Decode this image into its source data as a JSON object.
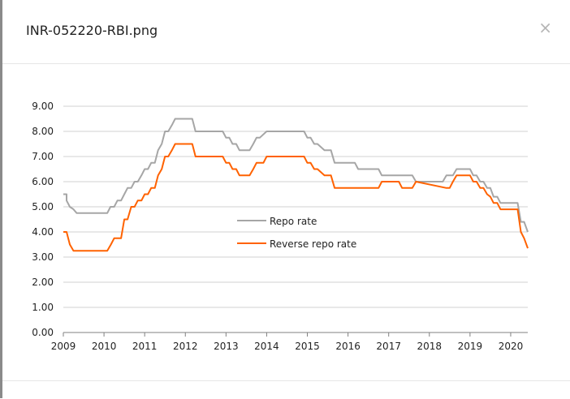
{
  "dialog": {
    "title": "INR-052220-RBI.png",
    "close_label": "×"
  },
  "colors": {
    "repo": "#a6a6a6",
    "reverse_repo": "#ff6200",
    "grid": "#d0d0d0",
    "axis": "#808080",
    "text": "#222222"
  },
  "chart_data": {
    "type": "line",
    "title": "",
    "xlabel": "",
    "ylabel": "",
    "ylim": [
      0,
      9
    ],
    "yticks": [
      "0.00",
      "1.00",
      "2.00",
      "3.00",
      "4.00",
      "5.00",
      "6.00",
      "7.00",
      "8.00",
      "9.00"
    ],
    "xlim": [
      2009,
      2020.42
    ],
    "xticks": [
      "2009",
      "2010",
      "2011",
      "2012",
      "2013",
      "2014",
      "2015",
      "2016",
      "2017",
      "2018",
      "2019",
      "2020"
    ],
    "grid": "horizontal",
    "legend": "center",
    "series": [
      {
        "name": "Repo rate",
        "color_key": "repo",
        "x": [
          2009.0,
          2009.08,
          2009.08,
          2009.16,
          2009.25,
          2009.33,
          2009.33,
          2010.08,
          2010.16,
          2010.25,
          2010.33,
          2010.42,
          2010.5,
          2010.58,
          2010.67,
          2010.75,
          2010.83,
          2010.92,
          2011.0,
          2011.08,
          2011.16,
          2011.25,
          2011.33,
          2011.42,
          2011.5,
          2011.58,
          2011.67,
          2011.75,
          2011.83,
          2012.17,
          2012.25,
          2012.33,
          2012.42,
          2012.92,
          2013.0,
          2013.08,
          2013.16,
          2013.25,
          2013.33,
          2013.42,
          2013.58,
          2013.67,
          2013.75,
          2013.83,
          2014.0,
          2014.08,
          2014.92,
          2015.0,
          2015.08,
          2015.17,
          2015.25,
          2015.42,
          2015.58,
          2015.67,
          2015.75,
          2016.17,
          2016.25,
          2016.75,
          2016.83,
          2017.58,
          2017.67,
          2018.33,
          2018.42,
          2018.58,
          2018.67,
          2019.0,
          2019.08,
          2019.16,
          2019.25,
          2019.33,
          2019.42,
          2019.5,
          2019.58,
          2019.67,
          2019.75,
          2019.83,
          2020.17,
          2020.25,
          2020.33,
          2020.42
        ],
        "y": [
          5.5,
          5.5,
          5.25,
          5.0,
          4.9,
          4.75,
          4.75,
          4.75,
          5.0,
          5.0,
          5.25,
          5.25,
          5.5,
          5.75,
          5.75,
          6.0,
          6.0,
          6.25,
          6.5,
          6.5,
          6.75,
          6.75,
          7.25,
          7.5,
          8.0,
          8.0,
          8.25,
          8.5,
          8.5,
          8.5,
          8.0,
          8.0,
          8.0,
          8.0,
          7.75,
          7.75,
          7.5,
          7.5,
          7.25,
          7.25,
          7.25,
          7.5,
          7.75,
          7.75,
          8.0,
          8.0,
          8.0,
          7.75,
          7.75,
          7.5,
          7.5,
          7.25,
          7.25,
          6.75,
          6.75,
          6.75,
          6.5,
          6.5,
          6.25,
          6.25,
          6.0,
          6.0,
          6.25,
          6.25,
          6.5,
          6.5,
          6.25,
          6.25,
          6.0,
          6.0,
          5.75,
          5.75,
          5.4,
          5.4,
          5.15,
          5.15,
          5.15,
          4.4,
          4.4,
          4.0
        ]
      },
      {
        "name": "Reverse repo rate",
        "color_key": "reverse_repo",
        "x": [
          2009.0,
          2009.08,
          2009.16,
          2009.25,
          2010.08,
          2010.17,
          2010.25,
          2010.33,
          2010.42,
          2010.5,
          2010.58,
          2010.67,
          2010.75,
          2010.83,
          2010.92,
          2011.0,
          2011.08,
          2011.16,
          2011.25,
          2011.33,
          2011.42,
          2011.5,
          2011.58,
          2011.67,
          2011.75,
          2011.83,
          2012.17,
          2012.25,
          2012.92,
          2013.0,
          2013.08,
          2013.16,
          2013.25,
          2013.33,
          2013.58,
          2013.67,
          2013.75,
          2013.92,
          2014.0,
          2014.92,
          2015.0,
          2015.08,
          2015.17,
          2015.25,
          2015.42,
          2015.58,
          2015.67,
          2016.17,
          2016.25,
          2016.75,
          2016.83,
          2017.25,
          2017.33,
          2017.58,
          2017.67,
          2018.42,
          2018.5,
          2018.58,
          2018.67,
          2019.0,
          2019.08,
          2019.16,
          2019.25,
          2019.33,
          2019.42,
          2019.5,
          2019.58,
          2019.67,
          2019.75,
          2019.83,
          2020.17,
          2020.25,
          2020.33,
          2020.42
        ],
        "y": [
          4.0,
          4.0,
          3.5,
          3.25,
          3.25,
          3.5,
          3.75,
          3.75,
          3.75,
          4.5,
          4.5,
          5.0,
          5.0,
          5.25,
          5.25,
          5.5,
          5.5,
          5.75,
          5.75,
          6.25,
          6.5,
          7.0,
          7.0,
          7.25,
          7.5,
          7.5,
          7.5,
          7.0,
          7.0,
          6.75,
          6.75,
          6.5,
          6.5,
          6.25,
          6.25,
          6.5,
          6.75,
          6.75,
          7.0,
          7.0,
          6.75,
          6.75,
          6.5,
          6.5,
          6.25,
          6.25,
          5.75,
          5.75,
          5.75,
          5.75,
          6.0,
          6.0,
          5.75,
          5.75,
          6.0,
          5.75,
          5.75,
          6.0,
          6.25,
          6.25,
          6.0,
          6.0,
          5.75,
          5.75,
          5.5,
          5.4,
          5.15,
          5.15,
          4.9,
          4.9,
          4.9,
          4.0,
          3.75,
          3.35
        ]
      }
    ]
  }
}
